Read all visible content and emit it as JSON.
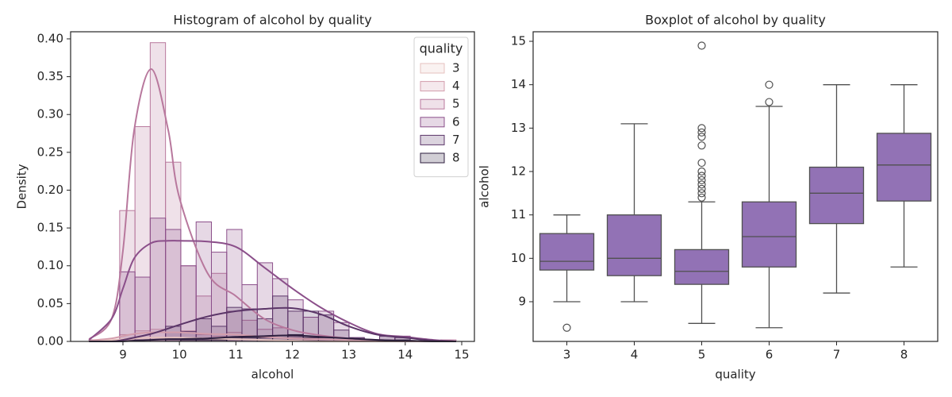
{
  "chart_data": [
    {
      "type": "histogram",
      "title": "Histogram of alcohol by quality",
      "x_label": "alcohol",
      "y_label": "Density",
      "bins": [
        8.4,
        8.671,
        8.942,
        9.213,
        9.483,
        9.754,
        10.025,
        10.296,
        10.567,
        10.838,
        11.108,
        11.379,
        11.65,
        11.921,
        12.192,
        12.463,
        12.733,
        13.004,
        13.275,
        13.546,
        13.817,
        14.088,
        14.358,
        14.629,
        14.9
      ],
      "kde_x": [
        8.4,
        8.8,
        9.0,
        9.2,
        9.5,
        9.8,
        10.0,
        10.5,
        11.0,
        11.5,
        12.0,
        12.5,
        13.0,
        13.5,
        14.0,
        14.5,
        14.9
      ],
      "series": [
        {
          "name": "3",
          "color": "#e6c2bf",
          "values": [
            0.0023,
            0,
            0.0023,
            0.0046,
            0.0046,
            0.0023,
            0.0046,
            0.0023,
            0.0023,
            0.0023,
            0,
            0.0023,
            0,
            0,
            0,
            0,
            0,
            0,
            0,
            0,
            0,
            0,
            0,
            0
          ],
          "kde": [
            0.001,
            0.002,
            0.003,
            0.004,
            0.005,
            0.005,
            0.005,
            0.004,
            0.003,
            0.002,
            0.001,
            0,
            0,
            0,
            0,
            0,
            0
          ]
        },
        {
          "name": "4",
          "color": "#d39dac",
          "values": [
            0,
            0,
            0.009,
            0.014,
            0.016,
            0.012,
            0.014,
            0.009,
            0.007,
            0.012,
            0.007,
            0.005,
            0.002,
            0.005,
            0.002,
            0.002,
            0.002,
            0.002,
            0,
            0,
            0,
            0,
            0,
            0
          ],
          "kde": [
            0.001,
            0.004,
            0.007,
            0.01,
            0.012,
            0.012,
            0.012,
            0.01,
            0.009,
            0.006,
            0.004,
            0.003,
            0.002,
            0.001,
            0,
            0,
            0
          ]
        },
        {
          "name": "5",
          "color": "#b8789d",
          "values": [
            0,
            0,
            0.173,
            0.284,
            0.395,
            0.237,
            0.1,
            0.06,
            0.09,
            0.04,
            0.028,
            0.016,
            0.018,
            0.007,
            0.005,
            0.005,
            0.002,
            0.002,
            0,
            0,
            0,
            0,
            0,
            0.002
          ],
          "kde": [
            0.003,
            0.03,
            0.12,
            0.28,
            0.36,
            0.28,
            0.19,
            0.09,
            0.06,
            0.03,
            0.015,
            0.008,
            0.004,
            0.002,
            0.001,
            0,
            0
          ]
        },
        {
          "name": "6",
          "color": "#8b4f8a",
          "values": [
            0.002,
            0,
            0.092,
            0.085,
            0.163,
            0.148,
            0.1,
            0.158,
            0.118,
            0.148,
            0.075,
            0.104,
            0.083,
            0.055,
            0.032,
            0.04,
            0.025,
            0.005,
            0,
            0.007,
            0.007,
            0,
            0,
            0
          ],
          "kde": [
            0.002,
            0.03,
            0.07,
            0.11,
            0.13,
            0.133,
            0.133,
            0.132,
            0.125,
            0.098,
            0.07,
            0.045,
            0.025,
            0.01,
            0.006,
            0.002,
            0
          ]
        },
        {
          "name": "7",
          "color": "#5b3568",
          "values": [
            0,
            0,
            0,
            0.002,
            0.005,
            0.02,
            0.013,
            0.03,
            0.02,
            0.045,
            0.043,
            0.03,
            0.06,
            0.04,
            0.04,
            0.035,
            0.015,
            0.005,
            0,
            0.007,
            0.005,
            0,
            0,
            0
          ],
          "kde": [
            0,
            0,
            0.002,
            0.005,
            0.01,
            0.017,
            0.022,
            0.033,
            0.04,
            0.043,
            0.044,
            0.036,
            0.02,
            0.009,
            0.005,
            0.001,
            0
          ]
        },
        {
          "name": "8",
          "color": "#2d1e3e",
          "values": [
            0,
            0,
            0,
            0,
            0,
            0.005,
            0.002,
            0.002,
            0.002,
            0.005,
            0.005,
            0.005,
            0.005,
            0.009,
            0.005,
            0.005,
            0.002,
            0.002,
            0,
            0,
            0.002,
            0,
            0,
            0
          ],
          "kde": [
            0,
            0,
            0,
            0.001,
            0.002,
            0.003,
            0.003,
            0.004,
            0.006,
            0.007,
            0.008,
            0.006,
            0.004,
            0.002,
            0.001,
            0,
            0
          ]
        }
      ],
      "legend_title": "quality",
      "legend": "upper right",
      "xlim": [
        8.073,
        15.225
      ],
      "ylim": [
        0,
        0.4094
      ],
      "xticks": [
        9,
        10,
        11,
        12,
        13,
        14,
        15
      ],
      "yticks": [
        {
          "value": 0,
          "label": "0.00"
        },
        {
          "value": 0.05,
          "label": "0.05"
        },
        {
          "value": 0.1,
          "label": "0.10"
        },
        {
          "value": 0.15,
          "label": "0.15"
        },
        {
          "value": 0.2,
          "label": "0.20"
        },
        {
          "value": 0.25,
          "label": "0.25"
        },
        {
          "value": 0.3,
          "label": "0.30"
        },
        {
          "value": 0.35,
          "label": "0.35"
        },
        {
          "value": 0.4,
          "label": "0.40"
        }
      ]
    },
    {
      "type": "box",
      "title": "Boxplot of alcohol by quality",
      "x_label": "quality",
      "y_label": "alcohol",
      "color": "#9272b5",
      "categories": [
        "3",
        "4",
        "5",
        "6",
        "7",
        "8"
      ],
      "boxes": [
        {
          "whislo": 9.0,
          "q1": 9.73,
          "median": 9.93,
          "q3": 10.57,
          "whishi": 11.0,
          "fliers": [
            8.4
          ]
        },
        {
          "whislo": 9.0,
          "q1": 9.6,
          "median": 10.0,
          "q3": 11.0,
          "whishi": 13.1,
          "fliers": []
        },
        {
          "whislo": 8.5,
          "q1": 9.4,
          "median": 9.7,
          "q3": 10.2,
          "whishi": 11.3,
          "fliers": [
            11.4,
            11.5,
            11.6,
            11.7,
            11.8,
            11.9,
            12.0,
            12.2,
            12.6,
            12.8,
            12.9,
            13.0,
            14.9
          ]
        },
        {
          "whislo": 8.4,
          "q1": 9.8,
          "median": 10.5,
          "q3": 11.3,
          "whishi": 13.5,
          "fliers": [
            13.6,
            14.0
          ]
        },
        {
          "whislo": 9.2,
          "q1": 10.8,
          "median": 11.5,
          "q3": 12.1,
          "whishi": 14.0,
          "fliers": []
        },
        {
          "whislo": 9.8,
          "q1": 11.32,
          "median": 12.15,
          "q3": 12.88,
          "whishi": 14.0,
          "fliers": []
        }
      ],
      "ylim": [
        8.085,
        15.22
      ],
      "yticks": [
        9,
        10,
        11,
        12,
        13,
        14,
        15
      ]
    }
  ]
}
